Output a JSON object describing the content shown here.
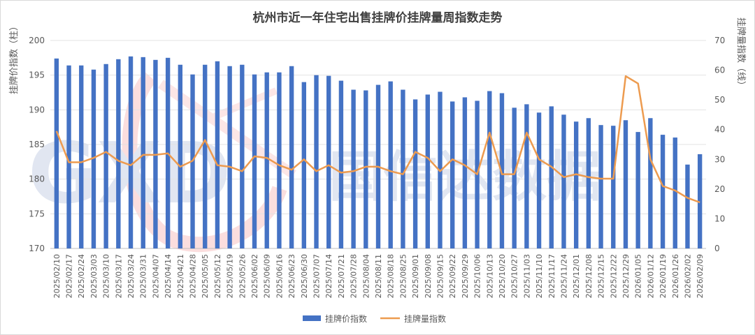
{
  "chart_data": {
    "type": "bar+line",
    "title": "杭州市近一年住宅出售挂牌价挂牌量周指数走势",
    "ylabel_left": "挂牌价指数（柱）",
    "ylabel_right": "挂牌量指数（线）",
    "ylim_left": [
      170,
      200
    ],
    "yticks_left": [
      "170",
      "175",
      "180",
      "185",
      "190",
      "195",
      "200"
    ],
    "ylim_right": [
      0,
      70
    ],
    "yticks_right": [
      "0",
      "10",
      "20",
      "30",
      "40",
      "50",
      "60",
      "70"
    ],
    "grid": true,
    "legend_position": "bottom",
    "watermark": "GXD 国信达数据",
    "categories": [
      "2025/02/10",
      "2025/02/17",
      "2025/02/24",
      "2025/03/03",
      "2025/03/10",
      "2025/03/17",
      "2025/03/24",
      "2025/03/31",
      "2025/04/07",
      "2025/04/14",
      "2025/04/21",
      "2025/04/28",
      "2025/05/05",
      "2025/05/12",
      "2025/05/19",
      "2025/05/26",
      "2025/06/02",
      "2025/06/09",
      "2025/06/16",
      "2025/06/23",
      "2025/06/30",
      "2025/07/07",
      "2025/07/14",
      "2025/07/21",
      "2025/07/28",
      "2025/08/04",
      "2025/08/11",
      "2025/08/18",
      "2025/08/25",
      "2025/09/01",
      "2025/09/08",
      "2025/09/15",
      "2025/09/22",
      "2025/09/29",
      "2025/10/06",
      "2025/10/13",
      "2025/10/20",
      "2025/10/27",
      "2025/11/03",
      "2025/11/10",
      "2025/11/17",
      "2025/11/24",
      "2025/12/01",
      "2025/12/08",
      "2025/12/15",
      "2025/12/22",
      "2025/12/29",
      "2026/01/05",
      "2026/01/12",
      "2026/01/19",
      "2026/01/26",
      "2026/02/02",
      "2026/02/09"
    ],
    "series": [
      {
        "name": "挂牌价指数",
        "type": "bar",
        "axis": "left",
        "color": "#4472c4",
        "values": [
          197.4,
          196.4,
          196.4,
          195.8,
          196.6,
          197.3,
          197.7,
          197.6,
          197.2,
          197.5,
          196.5,
          195.1,
          196.5,
          197.0,
          196.3,
          196.5,
          195.1,
          195.4,
          195.4,
          196.3,
          194.0,
          195.0,
          194.9,
          194.2,
          192.9,
          192.8,
          193.6,
          194.1,
          192.9,
          191.5,
          192.2,
          192.6,
          191.2,
          191.8,
          191.3,
          192.7,
          192.4,
          190.3,
          190.8,
          189.6,
          190.5,
          189.3,
          188.3,
          188.8,
          187.8,
          187.7,
          188.5,
          186.8,
          188.8,
          186.4,
          186.0,
          182.1,
          183.6
        ]
      },
      {
        "name": "挂牌量指数",
        "type": "line",
        "axis": "right",
        "color": "#ed9b4f",
        "values": [
          39.5,
          29.0,
          29.0,
          30.5,
          32.5,
          29.5,
          28.0,
          31.5,
          31.5,
          32.0,
          27.5,
          29.5,
          36.5,
          28.0,
          27.5,
          26.0,
          31.0,
          30.5,
          28.0,
          26.5,
          30.0,
          26.0,
          28.0,
          25.5,
          26.0,
          27.5,
          27.5,
          26.0,
          25.0,
          32.5,
          30.5,
          26.0,
          30.0,
          28.0,
          25.0,
          39.0,
          25.0,
          25.0,
          39.0,
          30.0,
          27.5,
          24.0,
          25.0,
          24.0,
          23.5,
          23.5,
          58.0,
          55.5,
          30.0,
          21.0,
          19.5,
          17.0,
          15.5
        ]
      }
    ]
  }
}
